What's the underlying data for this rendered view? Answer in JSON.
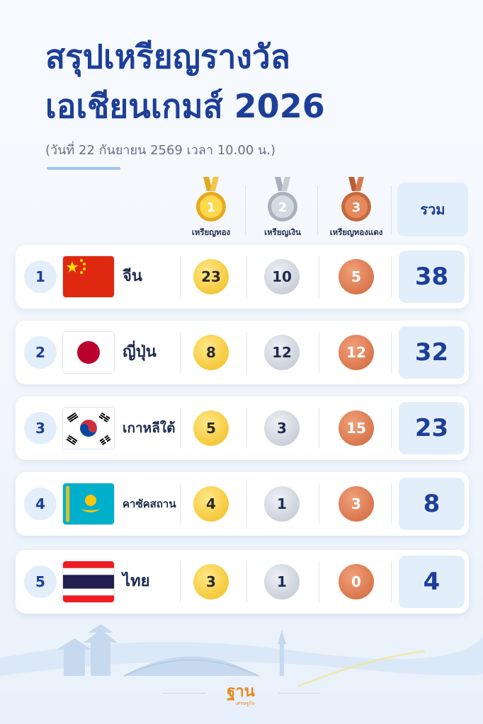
{
  "title": {
    "line1": "สรุปเหรียญรางวัล",
    "line2": "เอเชียนเกมส์ 2026",
    "subtitle": "(วันที่ 22 กันยายน 2569 เวลา 10.00 น.)"
  },
  "headers": {
    "gold_number": "1",
    "silver_number": "2",
    "bronze_number": "3",
    "gold": "เหรียญทอง",
    "silver": "เหรียญเงิน",
    "bronze": "เหรียญทองแดง",
    "total": "รวม"
  },
  "rows": [
    {
      "rank": "1",
      "country": "จีน",
      "flag": "china-flag",
      "gold": "23",
      "silver": "10",
      "bronze": "5",
      "total": "38"
    },
    {
      "rank": "2",
      "country": "ญี่ปุ่น",
      "flag": "japan-flag",
      "gold": "8",
      "silver": "12",
      "bronze": "12",
      "total": "32"
    },
    {
      "rank": "3",
      "country": "เกาหลีใต้",
      "flag": "south-korea-flag",
      "gold": "5",
      "silver": "3",
      "bronze": "15",
      "total": "23"
    },
    {
      "rank": "4",
      "country": "คาซัคสถาน",
      "flag": "kazakhstan-flag",
      "gold": "4",
      "silver": "1",
      "bronze": "3",
      "total": "8"
    },
    {
      "rank": "5",
      "country": "ไทย",
      "flag": "thailand-flag",
      "gold": "3",
      "silver": "1",
      "bronze": "0",
      "total": "4"
    }
  ],
  "footer": {
    "logo_main": "ฐาน",
    "logo_sub": "เศรษฐกิจ"
  },
  "colors": {
    "title": "#1d3f99",
    "gold": "#f5c93a",
    "silver": "#c9ced8",
    "bronze": "#d8744a",
    "total_bg": "#e3eefb",
    "logo": "#e8891e"
  }
}
